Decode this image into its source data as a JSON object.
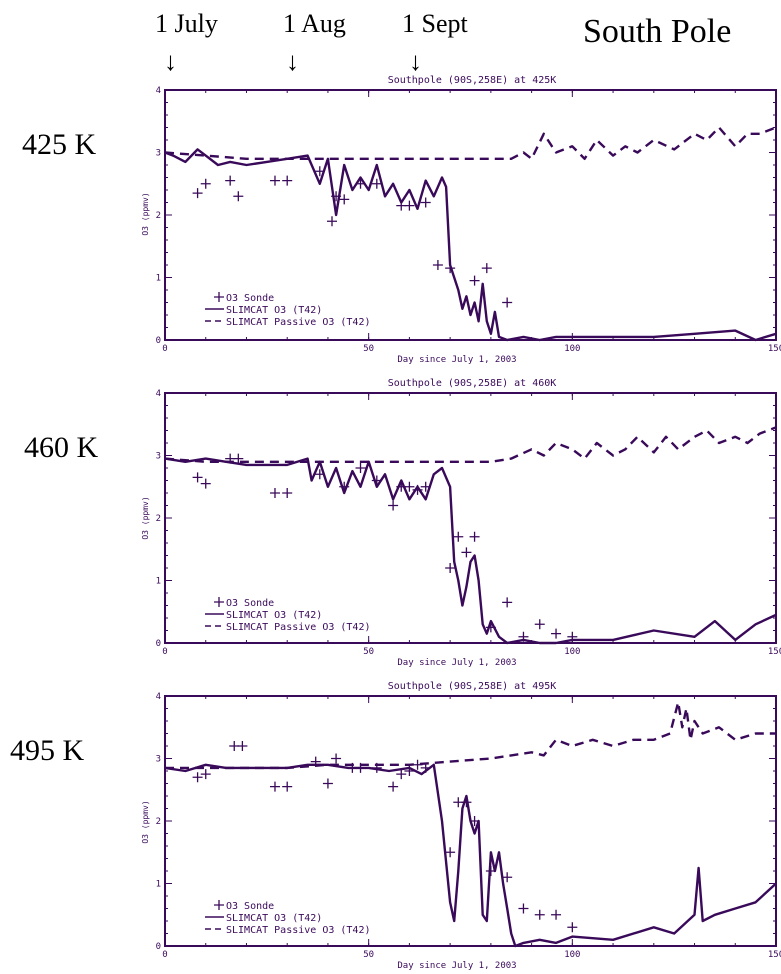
{
  "header": {
    "title": "South Pole",
    "date_markers": [
      {
        "label": "1 July",
        "day": 0
      },
      {
        "label": "1 Aug",
        "day": 31
      },
      {
        "label": "1 Sept",
        "day": 62
      }
    ],
    "arrow_glyph": "↓"
  },
  "colors": {
    "plot_line": "#3a0a5a",
    "text": "#000000"
  },
  "chart_data": [
    {
      "type": "line",
      "title": "Southpole (90S,258E) at 425K",
      "level_label": "425 K",
      "xlabel": "Day since July 1, 2003",
      "ylabel": "O3 (ppmv)",
      "xlim": [
        0,
        150
      ],
      "ylim": [
        0,
        4
      ],
      "x_ticks": [
        "0",
        "50",
        "100",
        "150"
      ],
      "y_ticks": [
        "0",
        "1",
        "2",
        "3",
        "4"
      ],
      "legend_position": "bottom-left",
      "legend": [
        "O3 Sonde",
        "SLIMCAT O3 (T42)",
        "SLIMCAT Passive O3 (T42)"
      ],
      "series": [
        {
          "name": "O3 Sonde",
          "style": "markers",
          "x": [
            8,
            10,
            16,
            18,
            27,
            30,
            38,
            41,
            42,
            44,
            48,
            52,
            58,
            60,
            64,
            67,
            70,
            76,
            79,
            84
          ],
          "y": [
            2.35,
            2.5,
            2.55,
            2.3,
            2.55,
            2.55,
            2.7,
            1.9,
            2.3,
            2.25,
            2.5,
            2.5,
            2.15,
            2.15,
            2.2,
            1.2,
            1.15,
            0.95,
            1.15,
            0.6
          ]
        },
        {
          "name": "SLIMCAT O3 (T42)",
          "style": "solid",
          "x": [
            0,
            2,
            5,
            8,
            10,
            13,
            16,
            20,
            25,
            30,
            35,
            38,
            40,
            42,
            44,
            46,
            48,
            50,
            52,
            54,
            56,
            58,
            60,
            62,
            64,
            66,
            68,
            69,
            70,
            71,
            72,
            73,
            74,
            75,
            76,
            77,
            78,
            79,
            80,
            81,
            82,
            84,
            88,
            92,
            96,
            100,
            110,
            120,
            130,
            140,
            145,
            150
          ],
          "y": [
            3.0,
            2.95,
            2.85,
            3.05,
            2.95,
            2.8,
            2.85,
            2.8,
            2.85,
            2.9,
            2.95,
            2.5,
            2.9,
            2.0,
            2.8,
            2.4,
            2.6,
            2.4,
            2.8,
            2.3,
            2.5,
            2.2,
            2.4,
            2.1,
            2.55,
            2.3,
            2.6,
            2.45,
            1.2,
            1.0,
            0.8,
            0.5,
            0.7,
            0.4,
            0.6,
            0.3,
            0.9,
            0.3,
            0.1,
            0.45,
            0.05,
            0.0,
            0.05,
            0.0,
            0.05,
            0.05,
            0.05,
            0.05,
            0.1,
            0.15,
            0.0,
            0.1
          ]
        },
        {
          "name": "SLIMCAT Passive O3 (T42)",
          "style": "dashed",
          "x": [
            0,
            10,
            20,
            30,
            40,
            50,
            60,
            70,
            80,
            85,
            88,
            90,
            93,
            96,
            100,
            103,
            106,
            110,
            113,
            116,
            120,
            125,
            130,
            133,
            136,
            140,
            143,
            146,
            150
          ],
          "y": [
            3.0,
            2.95,
            2.9,
            2.9,
            2.9,
            2.9,
            2.9,
            2.9,
            2.9,
            2.9,
            3.0,
            2.9,
            3.3,
            3.0,
            3.1,
            2.9,
            3.2,
            2.95,
            3.1,
            3.0,
            3.2,
            3.05,
            3.3,
            3.2,
            3.4,
            3.1,
            3.3,
            3.3,
            3.4
          ]
        }
      ]
    },
    {
      "type": "line",
      "title": "Southpole (90S,258E) at 460K",
      "level_label": "460 K",
      "xlabel": "Day since July 1, 2003",
      "ylabel": "O3 (ppmv)",
      "xlim": [
        0,
        150
      ],
      "ylim": [
        0,
        4
      ],
      "x_ticks": [
        "0",
        "50",
        "100",
        "150"
      ],
      "y_ticks": [
        "0",
        "1",
        "2",
        "3",
        "4"
      ],
      "legend_position": "bottom-left",
      "legend": [
        "O3 Sonde",
        "SLIMCAT O3 (T42)",
        "SLIMCAT Passive O3 (T42)"
      ],
      "series": [
        {
          "name": "O3 Sonde",
          "style": "markers",
          "x": [
            8,
            10,
            16,
            18,
            27,
            30,
            38,
            44,
            48,
            52,
            56,
            58,
            60,
            62,
            64,
            70,
            72,
            74,
            76,
            80,
            84,
            88,
            92,
            96,
            100
          ],
          "y": [
            2.65,
            2.55,
            2.95,
            2.95,
            2.4,
            2.4,
            2.7,
            2.5,
            2.8,
            2.6,
            2.2,
            2.5,
            2.5,
            2.45,
            2.5,
            1.2,
            1.7,
            1.45,
            1.7,
            0.25,
            0.65,
            0.1,
            0.3,
            0.15,
            0.1
          ]
        },
        {
          "name": "SLIMCAT O3 (T42)",
          "style": "solid",
          "x": [
            0,
            5,
            10,
            15,
            20,
            25,
            30,
            35,
            36,
            38,
            40,
            42,
            44,
            46,
            48,
            50,
            52,
            54,
            56,
            58,
            60,
            62,
            64,
            66,
            68,
            70,
            71,
            72,
            73,
            74,
            75,
            76,
            77,
            78,
            79,
            80,
            82,
            84,
            88,
            92,
            96,
            100,
            110,
            120,
            130,
            135,
            140,
            145,
            150
          ],
          "y": [
            2.95,
            2.9,
            2.95,
            2.9,
            2.85,
            2.85,
            2.85,
            2.95,
            2.6,
            2.9,
            2.5,
            2.8,
            2.4,
            2.75,
            2.5,
            2.9,
            2.5,
            2.7,
            2.3,
            2.6,
            2.3,
            2.5,
            2.3,
            2.7,
            2.8,
            2.5,
            1.3,
            1.0,
            0.6,
            0.9,
            1.3,
            1.4,
            1.0,
            0.3,
            0.15,
            0.35,
            0.1,
            0.0,
            0.05,
            0.0,
            0.0,
            0.05,
            0.05,
            0.2,
            0.1,
            0.35,
            0.05,
            0.3,
            0.45
          ]
        },
        {
          "name": "SLIMCAT Passive O3 (T42)",
          "style": "dashed",
          "x": [
            0,
            10,
            20,
            30,
            40,
            50,
            60,
            70,
            80,
            85,
            90,
            93,
            96,
            100,
            103,
            106,
            110,
            113,
            116,
            120,
            123,
            126,
            130,
            133,
            136,
            140,
            143,
            146,
            150
          ],
          "y": [
            2.95,
            2.9,
            2.9,
            2.9,
            2.9,
            2.9,
            2.9,
            2.9,
            2.9,
            2.95,
            3.1,
            3.0,
            3.2,
            3.1,
            2.95,
            3.2,
            3.0,
            3.1,
            3.3,
            3.05,
            3.3,
            3.1,
            3.3,
            3.4,
            3.2,
            3.3,
            3.2,
            3.35,
            3.45
          ]
        }
      ]
    },
    {
      "type": "line",
      "title": "Southpole (90S,258E) at 495K",
      "level_label": "495 K",
      "xlabel": "Day since July 1, 2003",
      "ylabel": "O3 (ppmv)",
      "xlim": [
        0,
        150
      ],
      "ylim": [
        0,
        4
      ],
      "x_ticks": [
        "0",
        "50",
        "100",
        "150"
      ],
      "y_ticks": [
        "0",
        "1",
        "2",
        "3",
        "4"
      ],
      "legend_position": "bottom-left",
      "legend": [
        "O3 Sonde",
        "SLIMCAT O3 (T42)",
        "SLIMCAT Passive O3 (T42)"
      ],
      "series": [
        {
          "name": "O3 Sonde",
          "style": "markers",
          "x": [
            8,
            10,
            17,
            19,
            27,
            30,
            37,
            40,
            42,
            46,
            48,
            52,
            56,
            58,
            60,
            62,
            64,
            70,
            72,
            74,
            76,
            80,
            84,
            88,
            92,
            96,
            100
          ],
          "y": [
            2.7,
            2.75,
            3.2,
            3.2,
            2.55,
            2.55,
            2.95,
            2.6,
            3.0,
            2.85,
            2.85,
            2.85,
            2.55,
            2.75,
            2.8,
            2.9,
            2.85,
            1.5,
            2.3,
            2.3,
            2.0,
            1.2,
            1.1,
            0.6,
            0.5,
            0.5,
            0.3
          ]
        },
        {
          "name": "SLIMCAT O3 (T42)",
          "style": "solid",
          "x": [
            0,
            5,
            10,
            15,
            20,
            25,
            30,
            35,
            40,
            45,
            50,
            55,
            60,
            63,
            66,
            68,
            70,
            71,
            72,
            73,
            74,
            75,
            76,
            77,
            78,
            79,
            80,
            81,
            82,
            83,
            84,
            85,
            86,
            88,
            92,
            96,
            100,
            110,
            120,
            125,
            130,
            131,
            132,
            135,
            140,
            145,
            150
          ],
          "y": [
            2.85,
            2.8,
            2.9,
            2.85,
            2.85,
            2.85,
            2.85,
            2.9,
            2.9,
            2.85,
            2.85,
            2.8,
            2.85,
            2.75,
            2.9,
            2.0,
            0.7,
            0.4,
            1.2,
            2.2,
            2.4,
            2.0,
            1.8,
            2.0,
            0.5,
            0.4,
            1.5,
            1.2,
            1.5,
            1.0,
            0.6,
            0.2,
            0.0,
            0.05,
            0.1,
            0.05,
            0.15,
            0.1,
            0.3,
            0.2,
            0.5,
            1.25,
            0.4,
            0.5,
            0.6,
            0.7,
            1.0
          ]
        },
        {
          "name": "SLIMCAT Passive O3 (T42)",
          "style": "dashed",
          "x": [
            0,
            10,
            20,
            30,
            40,
            50,
            60,
            70,
            80,
            85,
            90,
            93,
            96,
            100,
            105,
            110,
            115,
            120,
            124,
            126,
            127,
            128,
            129,
            130,
            132,
            136,
            140,
            145,
            150
          ],
          "y": [
            2.85,
            2.85,
            2.85,
            2.85,
            2.9,
            2.9,
            2.9,
            2.95,
            3.0,
            3.05,
            3.1,
            3.05,
            3.3,
            3.2,
            3.3,
            3.2,
            3.3,
            3.3,
            3.4,
            3.9,
            3.5,
            3.8,
            3.3,
            3.6,
            3.4,
            3.5,
            3.3,
            3.4,
            3.4
          ]
        }
      ]
    }
  ]
}
